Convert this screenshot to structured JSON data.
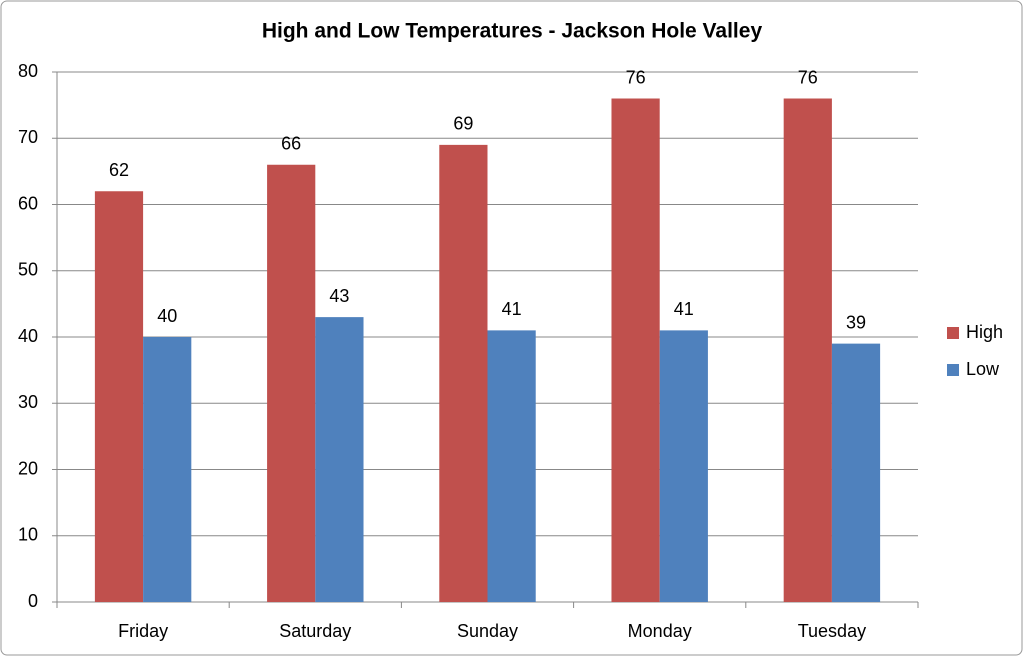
{
  "chart_data": {
    "type": "bar",
    "title": "High and Low Temperatures - Jackson Hole Valley",
    "categories": [
      "Friday",
      "Saturday",
      "Sunday",
      "Monday",
      "Tuesday"
    ],
    "series": [
      {
        "name": "High",
        "color": "#c0504d",
        "values": [
          62,
          66,
          69,
          76,
          76
        ]
      },
      {
        "name": "Low",
        "color": "#4f81bd",
        "values": [
          40,
          43,
          41,
          41,
          39
        ]
      }
    ],
    "ylim": [
      0,
      80
    ],
    "yticks": [
      0,
      10,
      20,
      30,
      40,
      50,
      60,
      70,
      80
    ],
    "grid": true,
    "legend": "right"
  }
}
